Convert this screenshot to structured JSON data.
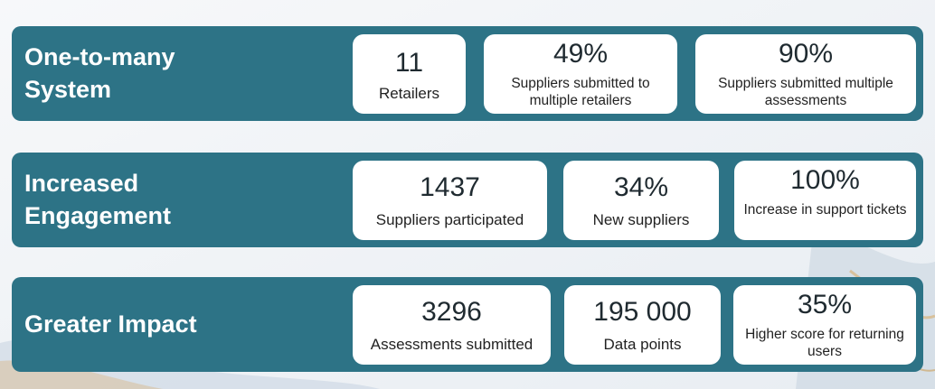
{
  "sections": [
    {
      "title": "One-to-many\nSystem",
      "cards": [
        {
          "value": "11",
          "label": "Retailers"
        },
        {
          "value": "49%",
          "label": "Suppliers submitted to multiple retailers"
        },
        {
          "value": "90%",
          "label": "Suppliers submitted multiple assessments"
        }
      ]
    },
    {
      "title": "Increased\nEngagement",
      "cards": [
        {
          "value": "1437",
          "label": "Suppliers participated"
        },
        {
          "value": "34%",
          "label": "New suppliers"
        },
        {
          "value": "100%",
          "label": "Increase in support tickets"
        }
      ]
    },
    {
      "title": "Greater Impact",
      "cards": [
        {
          "value": "3296",
          "label": "Assessments submitted"
        },
        {
          "value": "195 000",
          "label": "Data points"
        },
        {
          "value": "35%",
          "label": "Higher score for returning users"
        }
      ]
    }
  ],
  "colors": {
    "band": "#2d7386",
    "card": "#ffffff",
    "title": "#ffffff"
  }
}
